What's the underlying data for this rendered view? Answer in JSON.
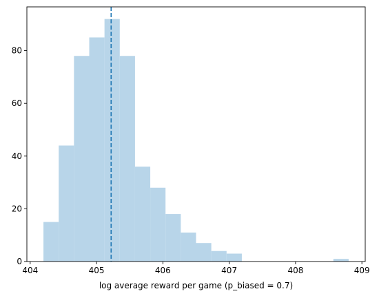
{
  "chart_data": {
    "type": "histogram",
    "title": "",
    "xlabel": "log average reward per game (p_biased = 0.7)",
    "ylabel": "",
    "xlim": [
      403.95,
      409.05
    ],
    "ylim": [
      0,
      96.6
    ],
    "x_ticks": [
      404,
      405,
      406,
      407,
      408,
      409
    ],
    "y_ticks": [
      0,
      20,
      40,
      60,
      80
    ],
    "bin_edges": [
      404.2,
      404.43,
      404.66,
      404.89,
      405.12,
      405.35,
      405.58,
      405.81,
      406.04,
      406.27,
      406.5,
      406.73,
      406.96,
      407.19,
      407.42,
      407.65,
      407.88,
      408.11,
      408.34,
      408.57,
      408.8
    ],
    "counts": [
      15,
      44,
      78,
      85,
      92,
      78,
      36,
      28,
      18,
      11,
      7,
      4,
      3,
      0,
      0,
      0,
      0,
      0,
      0,
      1
    ],
    "vline": {
      "x": 405.22,
      "style": "dashed"
    },
    "grid": false,
    "colors": {
      "bar_fill": "#b8d5e9",
      "vline": "#1f77b4",
      "axis": "#000000"
    }
  }
}
